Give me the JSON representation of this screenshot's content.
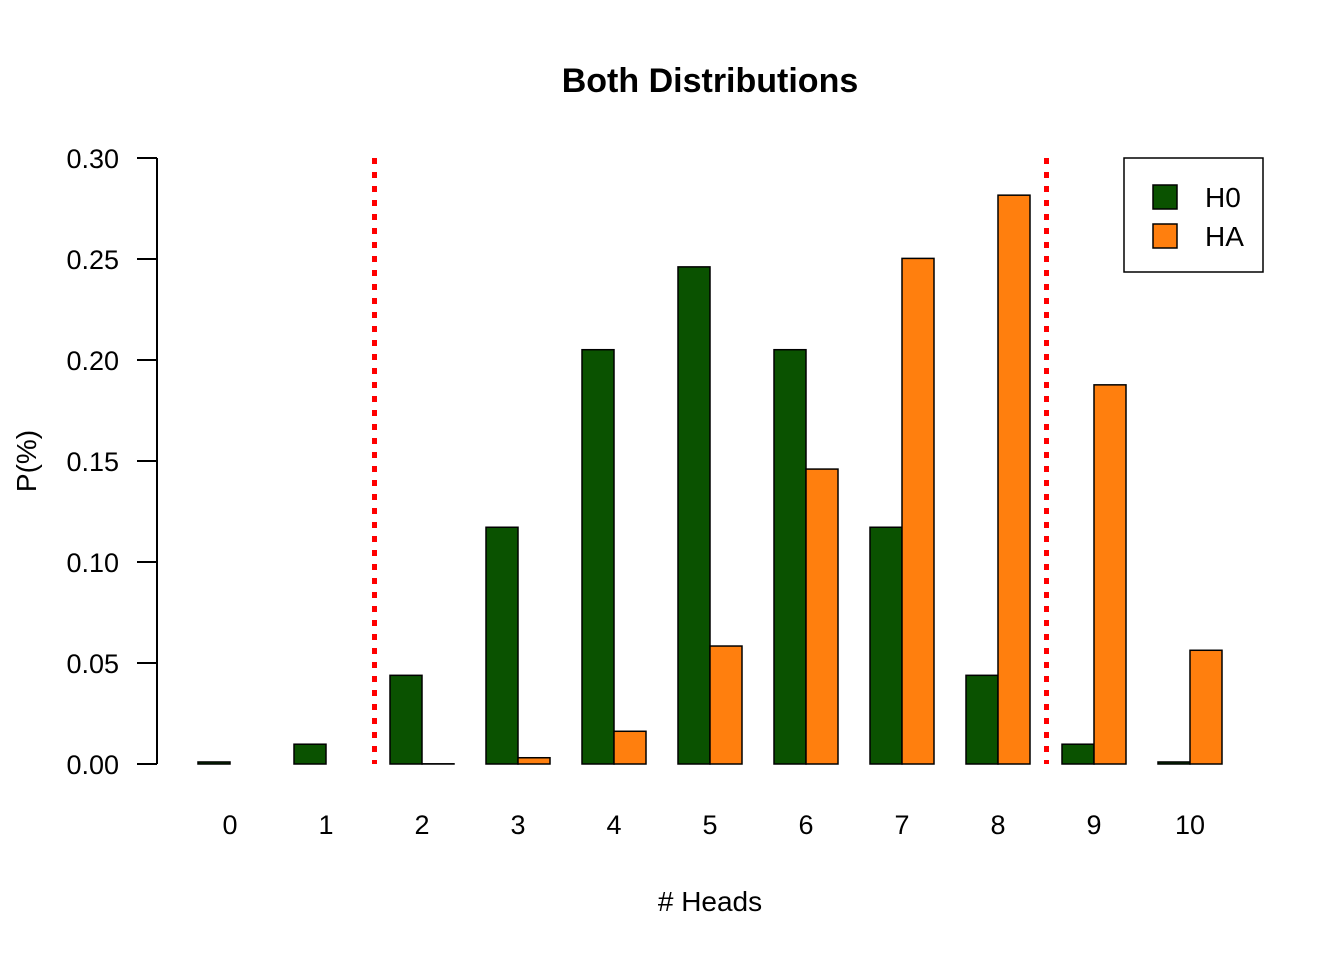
{
  "chart_data": {
    "type": "bar",
    "title": "Both Distributions",
    "xlabel": "# Heads",
    "ylabel": "P(%)",
    "categories": [
      "0",
      "1",
      "2",
      "3",
      "4",
      "5",
      "6",
      "7",
      "8",
      "9",
      "10"
    ],
    "series": [
      {
        "name": "H0",
        "color": "#0a5200",
        "values": [
          0.001,
          0.0098,
          0.0439,
          0.1172,
          0.2051,
          0.2461,
          0.2051,
          0.1172,
          0.0439,
          0.0098,
          0.001
        ]
      },
      {
        "name": "HA",
        "color": "#ff7f0e",
        "values": [
          0.0,
          0.0,
          0.0001,
          0.0031,
          0.0162,
          0.0584,
          0.146,
          0.2503,
          0.2816,
          0.1877,
          0.0563
        ]
      }
    ],
    "yticks": [
      "0.00",
      "0.05",
      "0.10",
      "0.15",
      "0.20",
      "0.25",
      "0.30"
    ],
    "ylim": [
      0,
      0.3
    ],
    "critical_lines": [
      1.5,
      8.5
    ],
    "critical_line_color": "#ff0000",
    "legend_placement": "top-right",
    "grid": false
  }
}
